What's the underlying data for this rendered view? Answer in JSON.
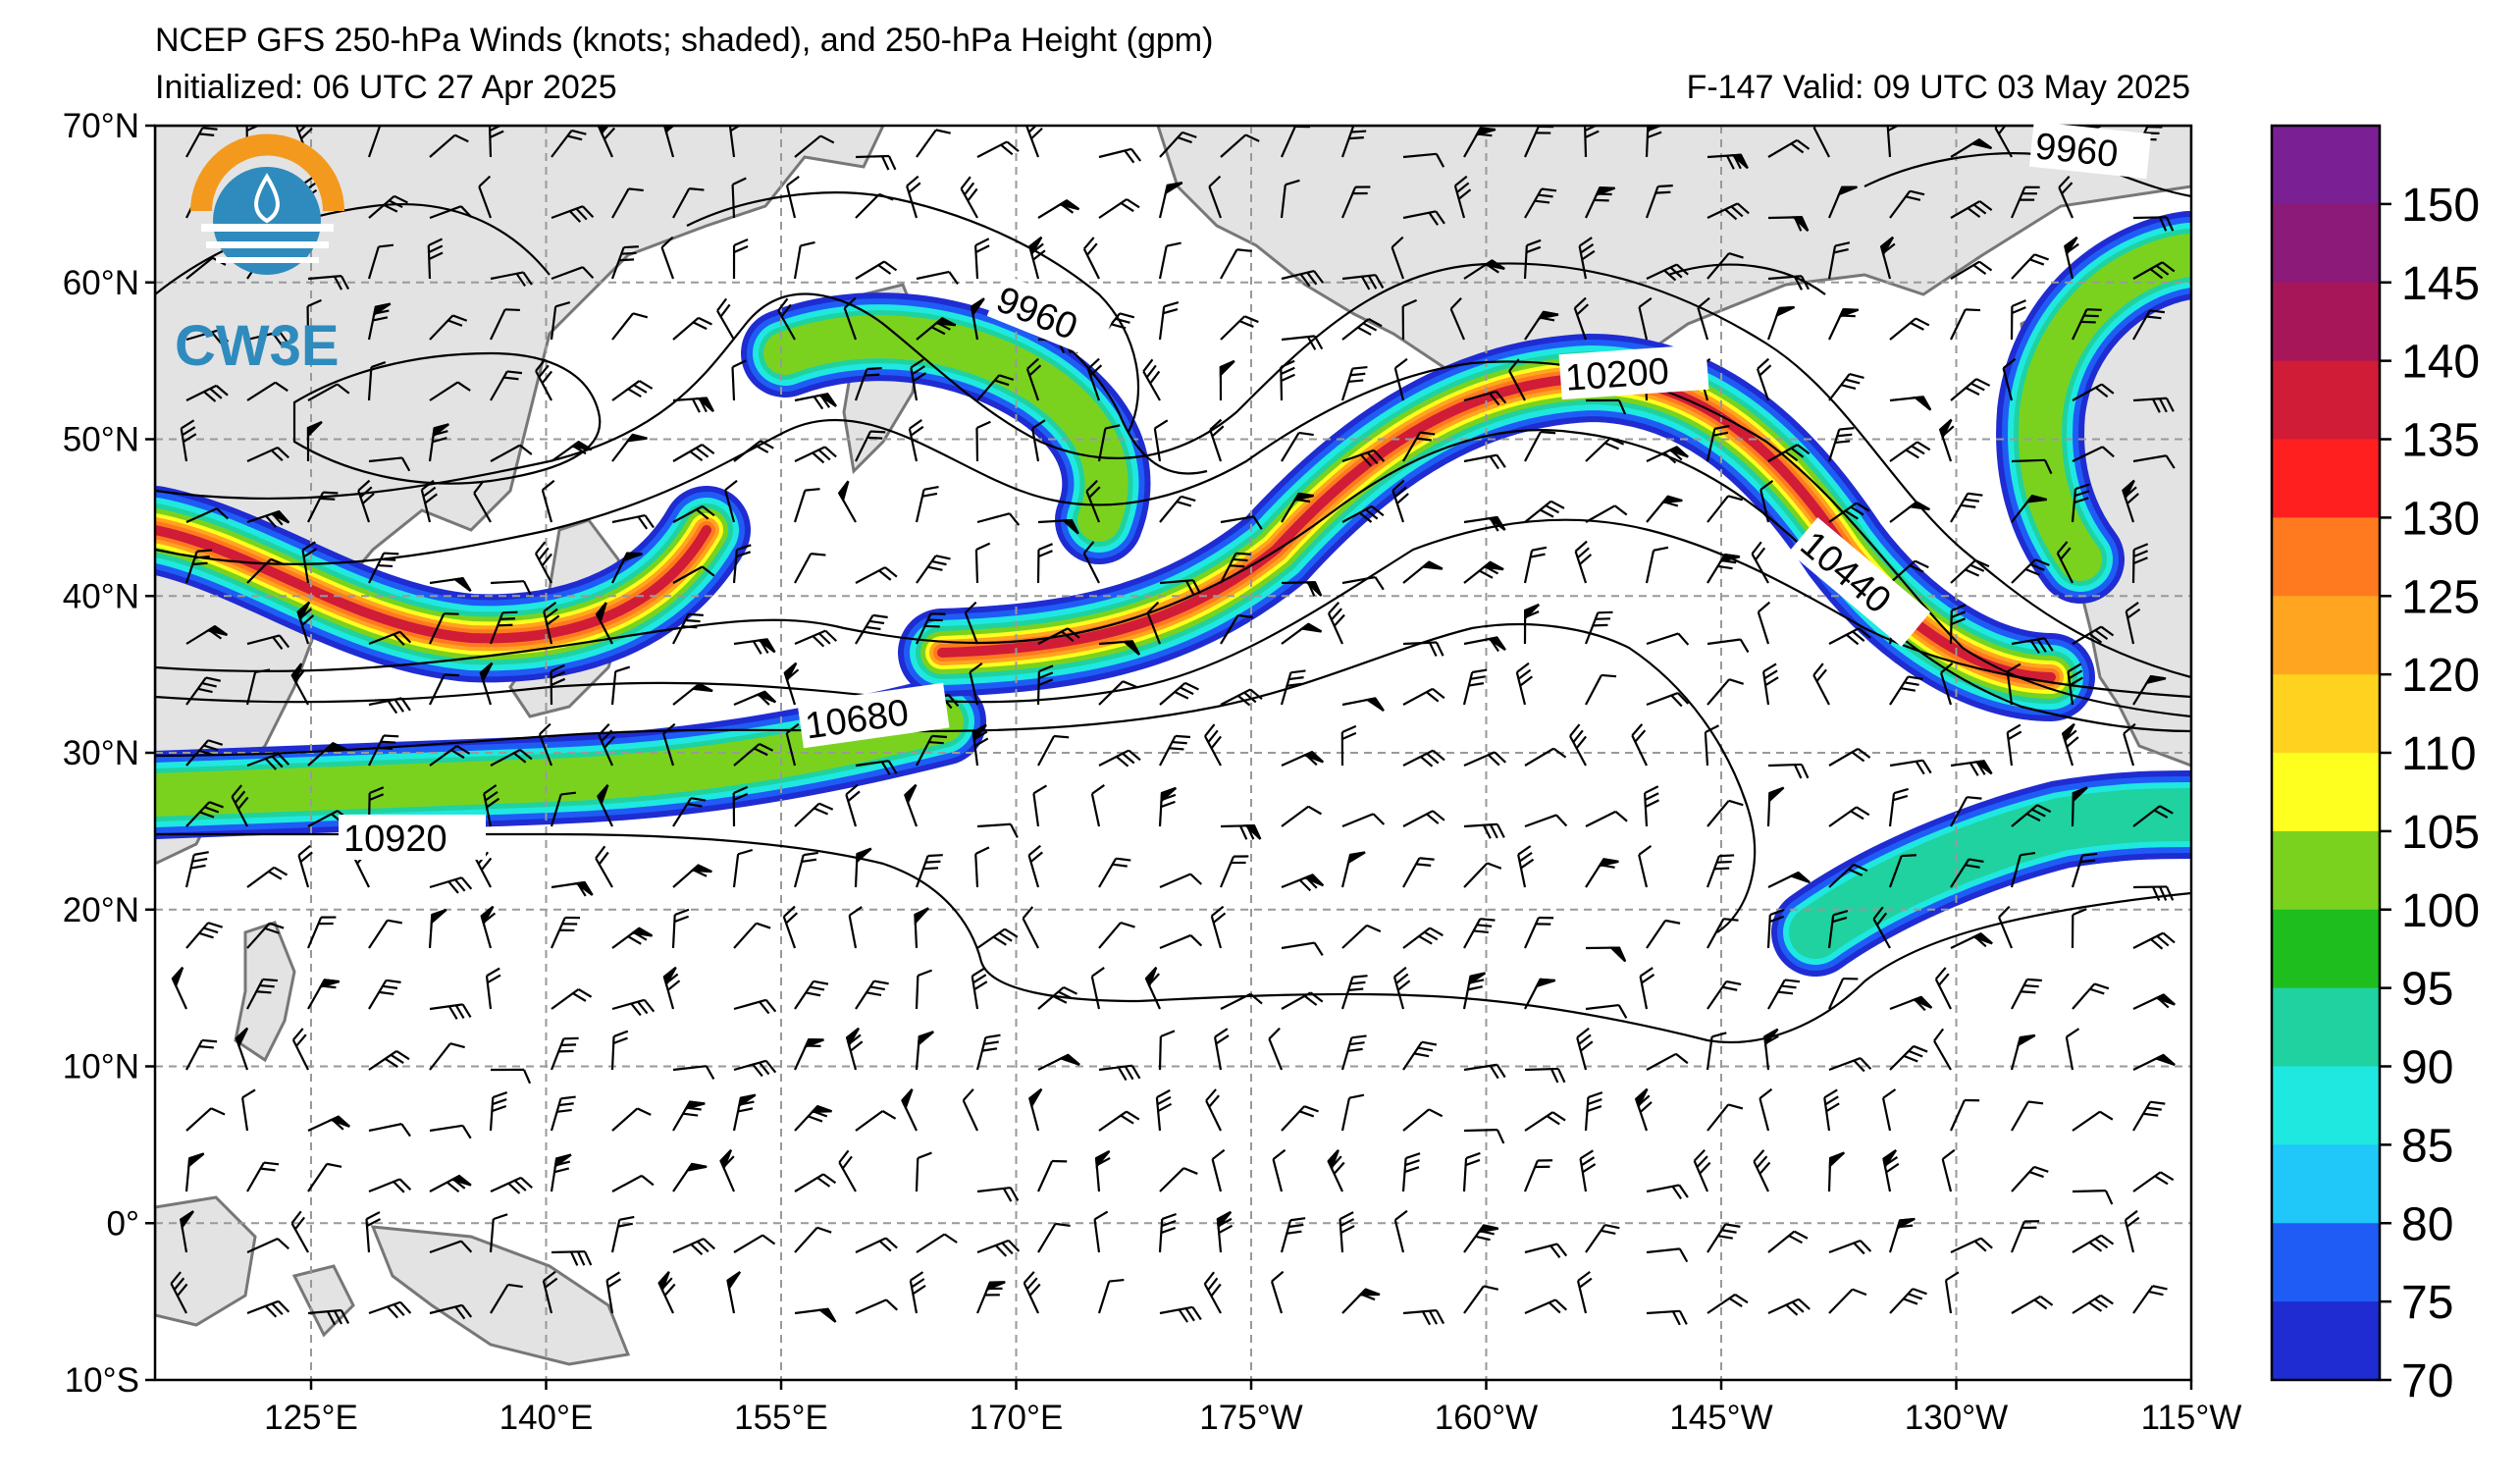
{
  "header": {
    "title": "NCEP GFS 250-hPa Winds (knots; shaded), and 250-hPa Height (gpm)",
    "initialized": "Initialized: 06 UTC 27 Apr 2025",
    "valid": "F-147  Valid: 09 UTC 03 May 2025"
  },
  "logo": {
    "text": "CW3E"
  },
  "axes": {
    "lat_labels": [
      "70°N",
      "60°N",
      "50°N",
      "40°N",
      "30°N",
      "20°N",
      "10°N",
      "0°",
      "10°S"
    ],
    "lon_labels": [
      "125°E",
      "140°E",
      "155°E",
      "170°E",
      "175°W",
      "160°W",
      "145°W",
      "130°W",
      "115°W"
    ]
  },
  "colorbar": {
    "labels": [
      "150",
      "145",
      "140",
      "135",
      "130",
      "125",
      "120",
      "110",
      "105",
      "100",
      "95",
      "90",
      "85",
      "80",
      "75",
      "70"
    ],
    "colors": [
      "#7a1f94",
      "#8c1a78",
      "#a8165a",
      "#d01c36",
      "#ff1f1f",
      "#ff7a1f",
      "#ffa51f",
      "#ffd21f",
      "#ffff1f",
      "#7ad21f",
      "#1fbe1f",
      "#1fd2a0",
      "#1fe8e0",
      "#1fc8f8",
      "#1f5cf5",
      "#1f2cd2"
    ]
  },
  "contours": {
    "labels": [
      "9960",
      "9960",
      "10200",
      "10440",
      "10680",
      "10920"
    ]
  },
  "map_style": {
    "land": "#e3e3e3",
    "coast": "#777777",
    "grid": "#999999"
  }
}
